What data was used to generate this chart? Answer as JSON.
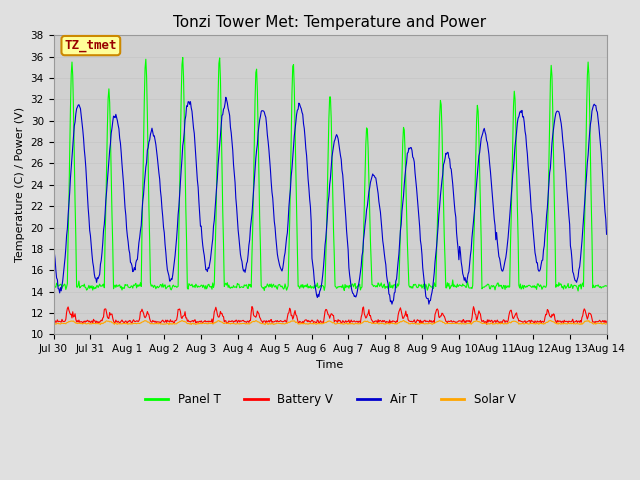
{
  "title": "Tonzi Tower Met: Temperature and Power",
  "ylabel": "Temperature (C) / Power (V)",
  "xlabel": "Time",
  "ylim": [
    10,
    38
  ],
  "yticks": [
    10,
    12,
    14,
    16,
    18,
    20,
    22,
    24,
    26,
    28,
    30,
    32,
    34,
    36,
    38
  ],
  "x_labels": [
    "Jul 30",
    "Jul 31",
    "Aug 1",
    "Aug 2",
    "Aug 3",
    "Aug 4",
    "Aug 5",
    "Aug 6",
    "Aug 7",
    "Aug 8",
    "Aug 9",
    "Aug 10",
    "Aug 11",
    "Aug 12",
    "Aug 13",
    "Aug 14"
  ],
  "n_days": 15,
  "background_color": "#e0e0e0",
  "plot_bg_color": "#d0d0d0",
  "panel_t_color": "#00ff00",
  "battery_v_color": "#ff0000",
  "air_t_color": "#0000cd",
  "solar_v_color": "#ffa500",
  "annotation_text": "TZ_tmet",
  "annotation_bg": "#ffff99",
  "annotation_border": "#cc8800",
  "annotation_text_color": "#990000",
  "grid_color": "#c8c8c8",
  "title_fontsize": 11,
  "axis_fontsize": 8,
  "tick_fontsize": 7.5,
  "legend_fontsize": 8.5
}
